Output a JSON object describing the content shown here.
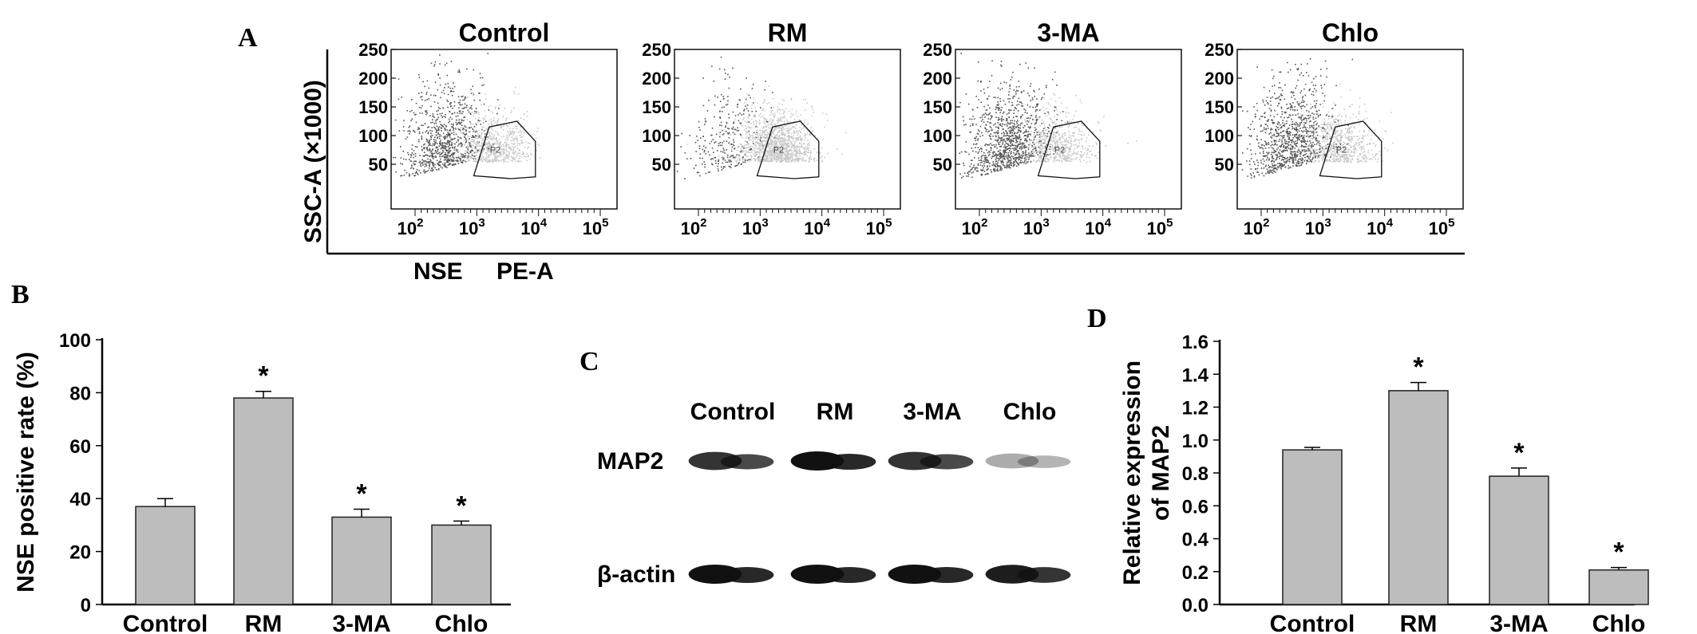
{
  "panel_labels": {
    "a": "A",
    "b": "B",
    "c": "C",
    "d": "D"
  },
  "panel_a": {
    "y_axis_label": "SSC-A (×1000)",
    "x_axis_label_left": "NSE",
    "x_axis_label_right": "PE-A",
    "gate_label": "P2",
    "y_ticks": [
      "250",
      "200",
      "150",
      "100",
      "50"
    ],
    "x_ticks": [
      {
        "base": "10",
        "exp": "2"
      },
      {
        "base": "10",
        "exp": "3"
      },
      {
        "base": "10",
        "exp": "4"
      },
      {
        "base": "10",
        "exp": "5"
      }
    ],
    "plots": [
      {
        "title": "Control",
        "gray_weight": 0.55
      },
      {
        "title": "RM",
        "gray_weight": 0.18
      },
      {
        "title": "3-MA",
        "gray_weight": 0.62
      },
      {
        "title": "Chlo",
        "gray_weight": 0.58
      }
    ]
  },
  "chart_data": [
    {
      "type": "bar",
      "panel": "B",
      "ylabel": "NSE positive rate (%)",
      "xlabel": "",
      "categories": [
        "Control",
        "RM",
        "3-MA",
        "Chlo"
      ],
      "values": [
        37,
        78,
        33,
        30
      ],
      "errors": [
        3,
        2.5,
        3,
        1.5
      ],
      "significance": [
        "",
        "*",
        "*",
        "*"
      ],
      "ylim": [
        0,
        100
      ],
      "yticks": [
        "0",
        "20",
        "40",
        "60",
        "80",
        "100"
      ],
      "grid": false
    },
    {
      "type": "bar",
      "panel": "D",
      "ylabel_line1": "Relative expression",
      "ylabel_line2": "of MAP2",
      "xlabel": "",
      "categories": [
        "Control",
        "RM",
        "3-MA",
        "Chlo"
      ],
      "values": [
        0.94,
        1.3,
        0.78,
        0.21
      ],
      "errors": [
        0.015,
        0.05,
        0.05,
        0.015
      ],
      "significance": [
        "",
        "*",
        "*",
        "*"
      ],
      "ylim": [
        0,
        1.6
      ],
      "yticks": [
        "0.0",
        "0.2",
        "0.4",
        "0.6",
        "0.8",
        "1.0",
        "1.2",
        "1.4",
        "1.6"
      ],
      "grid": false
    }
  ],
  "panel_c": {
    "lanes": [
      "Control",
      "RM",
      "3-MA",
      "Chlo"
    ],
    "rows": [
      {
        "label": "MAP2",
        "intensities": [
          0.85,
          1.0,
          0.85,
          0.35
        ]
      },
      {
        "label": "β-actin",
        "intensities": [
          1.0,
          1.0,
          1.0,
          0.95
        ]
      }
    ]
  }
}
